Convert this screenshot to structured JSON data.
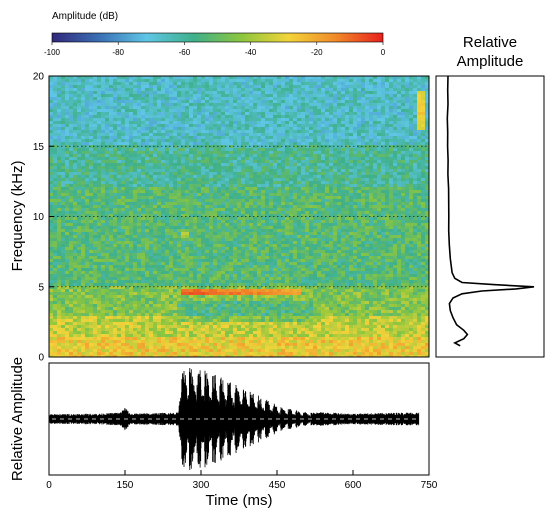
{
  "colorbar": {
    "title": "Amplitude (dB)",
    "ticks": [
      "-100",
      "-80",
      "-60",
      "-40",
      "-20",
      "0"
    ],
    "colors": [
      "#31287a",
      "#3a6fb5",
      "#5fc6e6",
      "#3fb08a",
      "#8cc63f",
      "#f2d43a",
      "#f08a2a",
      "#e8201c"
    ]
  },
  "chart_data": [
    {
      "type": "heatmap",
      "xlabel": "",
      "ylabel": "Frequency (kHz)",
      "xlim": [
        0,
        750
      ],
      "ylim": [
        0,
        20
      ],
      "zlim": [
        -100,
        0
      ],
      "yticks": [
        "0",
        "5",
        "10",
        "15",
        "20"
      ],
      "grid_y": [
        5,
        10,
        15
      ],
      "features": [
        {
          "kind": "tone",
          "freq_khz": 4.6,
          "t_start": 260,
          "t_end": 500,
          "db": -5
        },
        {
          "kind": "tone",
          "freq_khz": 17.5,
          "t_start": 730,
          "t_end": 740,
          "db": -25
        },
        {
          "kind": "tone",
          "freq_khz": 8.7,
          "t_start": 262,
          "t_end": 275,
          "db": -35
        }
      ]
    },
    {
      "type": "line",
      "title": "Relative Amplitude",
      "xlabel": "",
      "ylabel": "",
      "ylim": [
        0,
        20
      ],
      "peak_khz": 5.0,
      "y_khz": [
        0.8,
        1.0,
        1.3,
        1.6,
        1.9,
        2.3,
        2.8,
        3.3,
        3.8,
        4.2,
        4.5,
        4.7,
        4.85,
        5.0,
        5.15,
        5.3,
        5.6,
        6.0,
        7.0,
        8.0,
        9.0,
        10.0,
        11.0,
        12.0,
        13.0,
        14.0,
        15.0,
        16.0,
        17.0,
        18.0,
        19.0,
        20.0
      ],
      "amplitude": [
        0.18,
        0.12,
        0.22,
        0.26,
        0.22,
        0.14,
        0.1,
        0.07,
        0.06,
        0.1,
        0.2,
        0.42,
        0.8,
        1.0,
        0.55,
        0.2,
        0.12,
        0.09,
        0.07,
        0.06,
        0.055,
        0.05,
        0.05,
        0.05,
        0.045,
        0.045,
        0.04,
        0.045,
        0.04,
        0.04,
        0.04,
        0.04
      ]
    },
    {
      "type": "line",
      "xlabel": "Time (ms)",
      "ylabel": "Relative Amplitude",
      "xlim": [
        0,
        750
      ],
      "xticks": [
        "0",
        "150",
        "300",
        "450",
        "600",
        "750"
      ],
      "envelope": [
        {
          "t": 0,
          "amp": 0.09
        },
        {
          "t": 100,
          "amp": 0.1
        },
        {
          "t": 140,
          "amp": 0.12
        },
        {
          "t": 150,
          "amp": 0.22
        },
        {
          "t": 160,
          "amp": 0.1
        },
        {
          "t": 255,
          "amp": 0.12
        },
        {
          "t": 265,
          "amp": 1.0
        },
        {
          "t": 300,
          "amp": 0.92
        },
        {
          "t": 340,
          "amp": 0.78
        },
        {
          "t": 380,
          "amp": 0.6
        },
        {
          "t": 420,
          "amp": 0.4
        },
        {
          "t": 460,
          "amp": 0.22
        },
        {
          "t": 500,
          "amp": 0.14
        },
        {
          "t": 600,
          "amp": 0.1
        },
        {
          "t": 700,
          "amp": 0.12
        },
        {
          "t": 730,
          "amp": 0.12
        }
      ]
    }
  ]
}
